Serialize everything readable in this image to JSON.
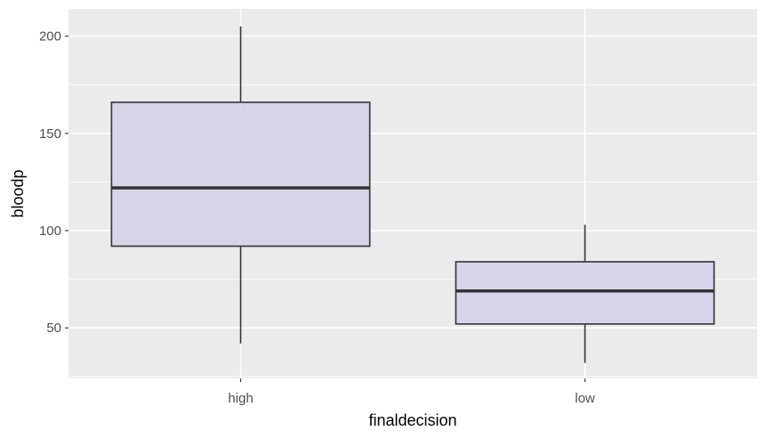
{
  "chart_data": {
    "type": "boxplot",
    "title": "",
    "xlabel": "finaldecision",
    "ylabel": "bloodp",
    "ylim": [
      24,
      214
    ],
    "yticks": [
      50,
      100,
      150,
      200
    ],
    "categories": [
      "high",
      "low"
    ],
    "boxes": [
      {
        "category": "high",
        "whisker_low": 42,
        "q1": 92,
        "median": 122,
        "q3": 166,
        "whisker_high": 205
      },
      {
        "category": "low",
        "whisker_low": 32,
        "q1": 52,
        "median": 69,
        "q3": 84,
        "whisker_high": 103
      }
    ],
    "grid": true,
    "legend": "none",
    "colors": {
      "panel": "#ebebeb",
      "grid": "#ffffff",
      "box_fill": "#d3cfe8",
      "box_stroke": "#333333"
    }
  }
}
